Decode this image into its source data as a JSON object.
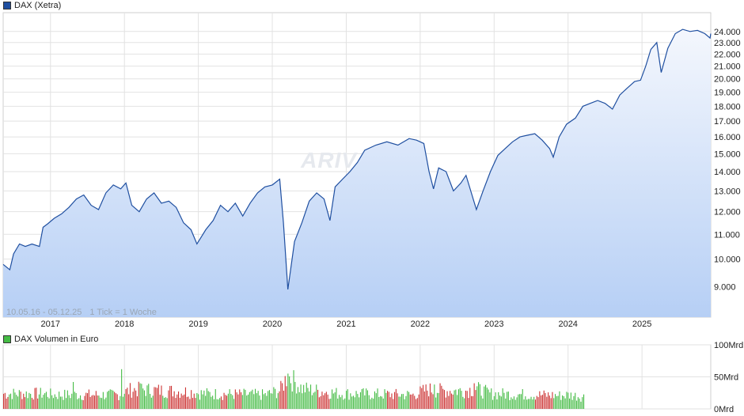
{
  "legend": {
    "price_label": "DAX (Xetra)",
    "price_color": "#1f4fa0",
    "volume_label": "DAX Volumen in Euro",
    "volume_color": "#44bb44"
  },
  "info": {
    "range": "10.05.16 - 05.12.25",
    "tick": "1 Tick = 1 Woche"
  },
  "watermark": "ARIVA.DE",
  "chart_data": [
    {
      "type": "area",
      "series": [
        {
          "name": "DAX (Xetra)",
          "points": [
            [
              2016.36,
              9800
            ],
            [
              2016.45,
              9600
            ],
            [
              2016.5,
              10200
            ],
            [
              2016.58,
              10600
            ],
            [
              2016.66,
              10500
            ],
            [
              2016.75,
              10600
            ],
            [
              2016.85,
              10500
            ],
            [
              2016.9,
              11300
            ],
            [
              2016.96,
              11450
            ],
            [
              2017.05,
              11700
            ],
            [
              2017.15,
              11900
            ],
            [
              2017.25,
              12200
            ],
            [
              2017.35,
              12600
            ],
            [
              2017.45,
              12800
            ],
            [
              2017.55,
              12300
            ],
            [
              2017.65,
              12100
            ],
            [
              2017.75,
              12900
            ],
            [
              2017.85,
              13300
            ],
            [
              2017.95,
              13100
            ],
            [
              2018.02,
              13400
            ],
            [
              2018.1,
              12300
            ],
            [
              2018.2,
              12000
            ],
            [
              2018.3,
              12600
            ],
            [
              2018.4,
              12900
            ],
            [
              2018.5,
              12400
            ],
            [
              2018.6,
              12500
            ],
            [
              2018.7,
              12200
            ],
            [
              2018.8,
              11500
            ],
            [
              2018.9,
              11200
            ],
            [
              2018.98,
              10600
            ],
            [
              2019.1,
              11200
            ],
            [
              2019.2,
              11600
            ],
            [
              2019.3,
              12300
            ],
            [
              2019.4,
              12000
            ],
            [
              2019.5,
              12400
            ],
            [
              2019.6,
              11800
            ],
            [
              2019.7,
              12400
            ],
            [
              2019.8,
              12900
            ],
            [
              2019.9,
              13200
            ],
            [
              2020.0,
              13300
            ],
            [
              2020.1,
              13600
            ],
            [
              2020.15,
              11500
            ],
            [
              2020.21,
              8900
            ],
            [
              2020.3,
              10700
            ],
            [
              2020.4,
              11500
            ],
            [
              2020.5,
              12500
            ],
            [
              2020.6,
              12900
            ],
            [
              2020.7,
              12600
            ],
            [
              2020.78,
              11600
            ],
            [
              2020.85,
              13200
            ],
            [
              2020.95,
              13600
            ],
            [
              2021.05,
              14000
            ],
            [
              2021.15,
              14500
            ],
            [
              2021.25,
              15200
            ],
            [
              2021.4,
              15500
            ],
            [
              2021.55,
              15700
            ],
            [
              2021.7,
              15500
            ],
            [
              2021.85,
              15900
            ],
            [
              2021.95,
              15800
            ],
            [
              2022.05,
              15600
            ],
            [
              2022.12,
              14000
            ],
            [
              2022.18,
              13100
            ],
            [
              2022.25,
              14200
            ],
            [
              2022.35,
              14000
            ],
            [
              2022.45,
              13000
            ],
            [
              2022.55,
              13400
            ],
            [
              2022.62,
              13800
            ],
            [
              2022.7,
              12800
            ],
            [
              2022.76,
              12100
            ],
            [
              2022.85,
              13000
            ],
            [
              2022.95,
              14000
            ],
            [
              2023.05,
              14900
            ],
            [
              2023.15,
              15300
            ],
            [
              2023.25,
              15700
            ],
            [
              2023.35,
              16000
            ],
            [
              2023.45,
              16100
            ],
            [
              2023.55,
              16200
            ],
            [
              2023.65,
              15800
            ],
            [
              2023.75,
              15300
            ],
            [
              2023.8,
              14800
            ],
            [
              2023.88,
              16000
            ],
            [
              2023.98,
              16800
            ],
            [
              2024.1,
              17200
            ],
            [
              2024.2,
              18000
            ],
            [
              2024.3,
              18200
            ],
            [
              2024.4,
              18400
            ],
            [
              2024.5,
              18200
            ],
            [
              2024.6,
              17800
            ],
            [
              2024.7,
              18800
            ],
            [
              2024.8,
              19300
            ],
            [
              2024.9,
              19800
            ],
            [
              2024.98,
              19900
            ],
            [
              2025.05,
              21000
            ],
            [
              2025.12,
              22400
            ],
            [
              2025.2,
              23000
            ],
            [
              2025.26,
              20500
            ],
            [
              2025.35,
              22500
            ],
            [
              2025.45,
              23800
            ],
            [
              2025.55,
              24200
            ],
            [
              2025.65,
              24000
            ],
            [
              2025.75,
              24100
            ],
            [
              2025.85,
              23800
            ],
            [
              2025.92,
              23400
            ],
            [
              2025.93,
              23800
            ]
          ]
        }
      ],
      "yticks": [
        9000,
        10000,
        11000,
        12000,
        13000,
        14000,
        15000,
        16000,
        17000,
        18000,
        19000,
        20000,
        21000,
        22000,
        23000,
        24000
      ],
      "ytick_labels": [
        "9.000",
        "10.000",
        "11.000",
        "12.000",
        "13.000",
        "14.000",
        "15.000",
        "16.000",
        "17.000",
        "18.000",
        "19.000",
        "20.000",
        "21.000",
        "22.000",
        "23.000",
        "24.000"
      ],
      "xticks": [
        2017,
        2018,
        2019,
        2020,
        2021,
        2022,
        2023,
        2024,
        2025
      ],
      "xtick_labels": [
        "2017",
        "2018",
        "2019",
        "2020",
        "2021",
        "2022",
        "2023",
        "2024",
        "2025"
      ],
      "xlim": [
        2016.36,
        2025.93
      ],
      "ylim": [
        8000,
        25800
      ],
      "yscale": "log",
      "grid": true
    },
    {
      "type": "bar",
      "series": [
        {
          "name": "DAX Volumen in Euro",
          "volume_levels": [
            [
              2016.36,
              25
            ],
            [
              2016.9,
              25
            ],
            [
              2017.05,
              23
            ],
            [
              2017.9,
              23
            ],
            [
              2018.1,
              32
            ],
            [
              2018.9,
              28
            ],
            [
              2019.05,
              25
            ],
            [
              2019.9,
              23
            ],
            [
              2020.1,
              30
            ],
            [
              2020.2,
              55
            ],
            [
              2020.4,
              33
            ],
            [
              2020.9,
              25
            ],
            [
              2021.0,
              25
            ],
            [
              2021.9,
              23
            ],
            [
              2022.1,
              32
            ],
            [
              2022.2,
              30
            ],
            [
              2022.6,
              30
            ],
            [
              2022.75,
              33
            ],
            [
              2022.95,
              25
            ],
            [
              2023.9,
              22
            ],
            [
              2024.0,
              23
            ],
            [
              2024.2,
              20
            ]
          ],
          "spikes": [
            [
              2017.3,
              42
            ],
            [
              2017.95,
              62
            ],
            [
              2018.2,
              40
            ],
            [
              2020.21,
              55
            ],
            [
              2022.18,
              38
            ],
            [
              2022.72,
              40
            ]
          ]
        }
      ],
      "yticks": [
        0,
        50,
        100
      ],
      "ytick_labels": [
        "0Mrd",
        "50Mrd",
        "100Mrd"
      ],
      "xticks": [
        2017,
        2018,
        2019,
        2020,
        2021,
        2022,
        2023,
        2024,
        2025
      ],
      "xlim": [
        2016.36,
        2025.93
      ],
      "ylim": [
        0,
        100
      ],
      "unit": "Mrd",
      "volume_end": 2024.21,
      "grid": true
    }
  ]
}
